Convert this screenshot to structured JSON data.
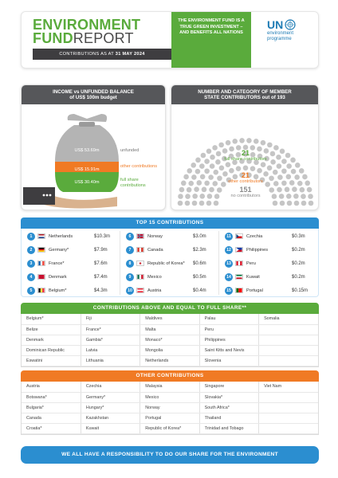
{
  "header": {
    "title_line1": "ENVIRONMENT",
    "title_fund": "FUND",
    "title_report": "REPORT",
    "as_at_prefix": "CONTRIBUTIONS AS AT",
    "as_at_date": "31 MAY 2024",
    "tagline": "THE ENVIRONMENT FUND IS A TRUE GREEN INVESTMENT – AND BENEFITS ALL NATIONS",
    "logo_un": "UN",
    "logo_line1": "environment",
    "logo_line2": "programme"
  },
  "income_panel": {
    "title_line1": "INCOME vs UNFUNDED BALANCE",
    "title_line2": "of US$ 100m budget",
    "unfunded_value": "US$ 53.69m",
    "unfunded_label": "unfunded",
    "other_value": "US$ 15.91m",
    "other_label": "other contributions",
    "full_value": "US$ 30.40m",
    "full_label": "full share contributions",
    "colors": {
      "unfunded": "#b4b4b4",
      "other": "#f07a24",
      "full": "#5aab3c"
    }
  },
  "member_panel": {
    "title_line1": "NUMBER AND CATEGORY OF MEMBER",
    "title_line2": "STATE CONTRIBUTORS out of 193",
    "full_count": "21",
    "full_label": "full share contributors",
    "other_count": "21",
    "other_label": "other contributors",
    "none_count": "151",
    "none_label": "no contributors",
    "full_dots": 21,
    "other_dots": 21,
    "none_dots": 151
  },
  "top15": {
    "title": "TOP 15 CONTRIBUTIONS",
    "items": [
      {
        "rank": "1",
        "country": "Netherlands",
        "amount": "$10.3m",
        "flag": [
          "#ae1c28",
          "#ffffff",
          "#21468b"
        ],
        "dir": "h"
      },
      {
        "rank": "2",
        "country": "Germany*",
        "amount": "$7.9m",
        "flag": [
          "#000000",
          "#dd0000",
          "#ffce00"
        ],
        "dir": "h"
      },
      {
        "rank": "3",
        "country": "France*",
        "amount": "$7.6m",
        "flag": [
          "#0055a4",
          "#ffffff",
          "#ef4135"
        ],
        "dir": "v"
      },
      {
        "rank": "4",
        "country": "Denmark",
        "amount": "$7.4m",
        "flag": [
          "#c8102e",
          "#ffffff",
          "#c8102e"
        ],
        "dir": "cross"
      },
      {
        "rank": "5",
        "country": "Belgium*",
        "amount": "$4.3m",
        "flag": [
          "#000000",
          "#fae042",
          "#ed2939"
        ],
        "dir": "v"
      },
      {
        "rank": "6",
        "country": "Norway",
        "amount": "$3.0m",
        "flag": [
          "#ba0c2f",
          "#00205b",
          "#ffffff"
        ],
        "dir": "cross"
      },
      {
        "rank": "7",
        "country": "Canada",
        "amount": "$2.3m",
        "flag": [
          "#d52b1e",
          "#ffffff",
          "#d52b1e"
        ],
        "dir": "v"
      },
      {
        "rank": "8",
        "country": "Republic of Korea*",
        "amount": "$0.6m",
        "flag": [
          "#ffffff",
          "#cd2e3a",
          "#0047a0"
        ],
        "dir": "circle"
      },
      {
        "rank": "9",
        "country": "Mexico",
        "amount": "$0.5m",
        "flag": [
          "#006847",
          "#ffffff",
          "#ce1126"
        ],
        "dir": "v"
      },
      {
        "rank": "10",
        "country": "Austria",
        "amount": "$0.4m",
        "flag": [
          "#ed2939",
          "#ffffff",
          "#ed2939"
        ],
        "dir": "h"
      },
      {
        "rank": "11",
        "country": "Czechia",
        "amount": "$0.3m",
        "flag": [
          "#ffffff",
          "#d7141a",
          "#11457e"
        ],
        "dir": "tri"
      },
      {
        "rank": "12",
        "country": "Philippines",
        "amount": "$0.2m",
        "flag": [
          "#0038a8",
          "#ce1126",
          "#ffffff"
        ],
        "dir": "tri"
      },
      {
        "rank": "13",
        "country": "Peru",
        "amount": "$0.2m",
        "flag": [
          "#d91023",
          "#ffffff",
          "#d91023"
        ],
        "dir": "v"
      },
      {
        "rank": "14",
        "country": "Kuwait",
        "amount": "$0.2m",
        "flag": [
          "#007a3d",
          "#ffffff",
          "#ce1126"
        ],
        "dir": "h"
      },
      {
        "rank": "15",
        "country": "Portugal",
        "amount": "$0.15m",
        "flag": [
          "#006600",
          "#ff0000",
          "#ff0000"
        ],
        "dir": "pt"
      }
    ]
  },
  "full_share": {
    "title": "CONTRIBUTIONS ABOVE AND EQUAL TO FULL SHARE**",
    "rows": [
      [
        "Belgium*",
        "Fiji",
        "Maldives",
        "Palau",
        "Somalia"
      ],
      [
        "Belize",
        "France*",
        "Malta",
        "Peru",
        ""
      ],
      [
        "Denmark",
        "Gambia*",
        "Monaco*",
        "Philippines",
        ""
      ],
      [
        "Dominican Republic",
        "Latvia",
        "Mongolia",
        "Saint Kitts and Nevis",
        ""
      ],
      [
        "Eswatini",
        "Lithuania",
        "Netherlands",
        "Slovenia",
        ""
      ]
    ]
  },
  "other": {
    "title": "OTHER CONTRIBUTIONS",
    "rows": [
      [
        "Austria",
        "Czechia",
        "Malaysia",
        "Singapore",
        "Viet Nam"
      ],
      [
        "Botswana*",
        "Germany*",
        "Mexico",
        "Slovakia*",
        ""
      ],
      [
        "Bulgaria*",
        "Hungary*",
        "Norway",
        "South Africa*",
        ""
      ],
      [
        "Canada",
        "Kazakhstan",
        "Portugal",
        "Thailand",
        ""
      ],
      [
        "Croatia*",
        "Kuwait",
        "Republic of Korea*",
        "Trinidad and Tobago",
        ""
      ]
    ]
  },
  "footer": {
    "text": "WE ALL HAVE A RESPONSIBILITY TO DO OUR SHARE FOR THE ENVIRONMENT"
  }
}
